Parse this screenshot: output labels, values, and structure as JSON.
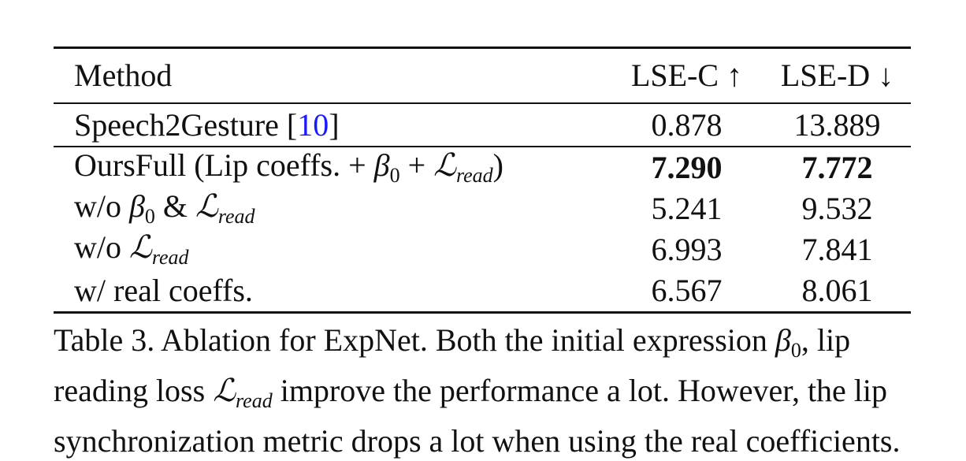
{
  "table": {
    "headers": {
      "method": "Method",
      "lse_c": "LSE-C ↑",
      "lse_d": "LSE-D ↓"
    },
    "baseline": {
      "method": "Speech2Gesture",
      "cite_open": "[",
      "cite": "10",
      "cite_close": "]",
      "lse_c": "0.878",
      "lse_d": "13.889"
    },
    "rows": [
      {
        "method_prefix": "OursFull (Lip coeffs. + ",
        "beta": "β",
        "beta_sub": "0",
        "plus": " + ",
        "loss": "ℒ",
        "loss_sub": "read",
        "suffix": ")",
        "lse_c": "7.290",
        "lse_d": "7.772"
      },
      {
        "method_prefix": "w/o ",
        "beta": "β",
        "beta_sub": "0",
        "amp": " & ",
        "loss": "ℒ",
        "loss_sub": "read",
        "lse_c": "5.241",
        "lse_d": "9.532"
      },
      {
        "method_prefix": "w/o ",
        "loss": "ℒ",
        "loss_sub": "read",
        "lse_c": "6.993",
        "lse_d": "7.841"
      },
      {
        "method_prefix": "w/ real coeffs.",
        "lse_c": "6.567",
        "lse_d": "8.061"
      }
    ]
  },
  "caption": {
    "line1_a": "Table 3. Ablation for ExpNet. Both the initial expression ",
    "beta": "β",
    "beta_sub": "0",
    "line1_b": ", lip",
    "line2_a": "reading loss ",
    "loss": "ℒ",
    "loss_sub": "read",
    "line2_b": " improve the performance a lot. However, the lip",
    "line3": "synchronization metric drops a lot when using the real coefficients."
  }
}
